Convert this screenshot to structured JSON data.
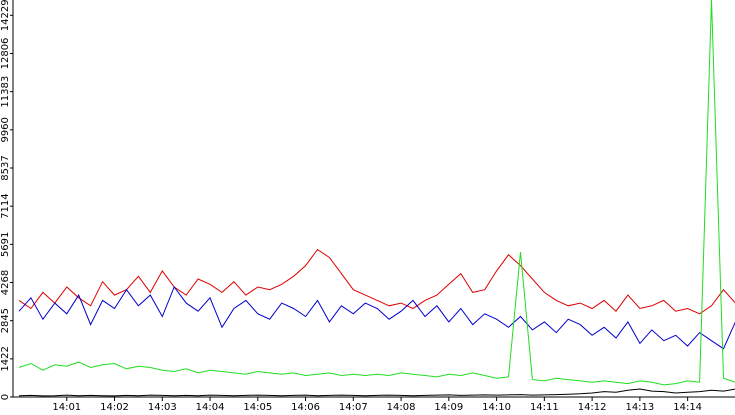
{
  "chart_data": {
    "type": "line",
    "categories": [
      null,
      null,
      null,
      null,
      "14:01",
      null,
      null,
      null,
      "14:02",
      null,
      null,
      null,
      "14:03",
      null,
      null,
      null,
      "14:04",
      null,
      null,
      null,
      "14:05",
      null,
      null,
      null,
      "14:06",
      null,
      null,
      null,
      "14:07",
      null,
      null,
      null,
      "14:08",
      null,
      null,
      null,
      "14:09",
      null,
      null,
      null,
      "14:10",
      null,
      null,
      null,
      "14:11",
      null,
      null,
      null,
      "14:12",
      null,
      null,
      null,
      "14:13",
      null,
      null,
      null,
      "14:14",
      null,
      null,
      null,
      null
    ],
    "series": [
      {
        "color": "#dd0000",
        "values": [
          3600,
          3300,
          3900,
          3500,
          4100,
          3700,
          3400,
          4300,
          3800,
          4000,
          4500,
          3900,
          4700,
          4100,
          3800,
          4400,
          4200,
          3900,
          4300,
          3800,
          4100,
          4000,
          4200,
          4500,
          4900,
          5500,
          5200,
          4600,
          4000,
          3800,
          3600,
          3400,
          3500,
          3300,
          3600,
          3800,
          4200,
          4600,
          3900,
          4000,
          4700,
          5300,
          4900,
          4400,
          3900,
          3600,
          3400,
          3500,
          3300,
          3600,
          3200,
          3800,
          3300,
          3400,
          3600,
          3200,
          3300,
          3100,
          3400,
          4000,
          3500
        ]
      },
      {
        "color": "#0000cc",
        "values": [
          3200,
          3700,
          2900,
          3500,
          3100,
          3800,
          2700,
          3600,
          3300,
          4000,
          3400,
          3800,
          3000,
          4100,
          3500,
          3200,
          3700,
          2600,
          3300,
          3600,
          3100,
          2900,
          3500,
          3300,
          3000,
          3600,
          2800,
          3400,
          3100,
          3500,
          3300,
          2900,
          3200,
          3600,
          3000,
          3400,
          2800,
          3300,
          2700,
          3100,
          2900,
          2600,
          3000,
          2500,
          2800,
          2400,
          2900,
          2700,
          2300,
          2600,
          2200,
          2800,
          2000,
          2500,
          2100,
          2300,
          1900,
          2400,
          2100,
          1800,
          2800
        ]
      },
      {
        "color": "#22dd22",
        "values": [
          1100,
          1250,
          1000,
          1200,
          1150,
          1300,
          1100,
          1200,
          1250,
          1050,
          1150,
          1100,
          1000,
          950,
          1050,
          900,
          1000,
          950,
          900,
          850,
          950,
          900,
          850,
          900,
          800,
          850,
          900,
          800,
          850,
          800,
          850,
          800,
          900,
          850,
          800,
          750,
          850,
          800,
          900,
          800,
          700,
          750,
          5400,
          650,
          600,
          700,
          650,
          600,
          550,
          600,
          550,
          500,
          600,
          550,
          450,
          500,
          600,
          550,
          14800,
          700,
          550
        ]
      },
      {
        "color": "#000000",
        "values": [
          50,
          60,
          40,
          50,
          70,
          50,
          60,
          50,
          40,
          60,
          50,
          70,
          60,
          50,
          60,
          50,
          70,
          60,
          50,
          60,
          70,
          60,
          50,
          60,
          70,
          50,
          60,
          70,
          60,
          50,
          60,
          70,
          60,
          50,
          60,
          70,
          80,
          60,
          70,
          80,
          70,
          80,
          90,
          70,
          80,
          90,
          100,
          120,
          150,
          200,
          180,
          250,
          300,
          220,
          200,
          150,
          180,
          200,
          250,
          220,
          300
        ]
      }
    ],
    "ylim": [
      0,
      14800
    ],
    "yticks": [
      0,
      1422,
      2845,
      4268,
      5691,
      7114,
      8537,
      9960,
      11383,
      12806,
      14229
    ]
  }
}
